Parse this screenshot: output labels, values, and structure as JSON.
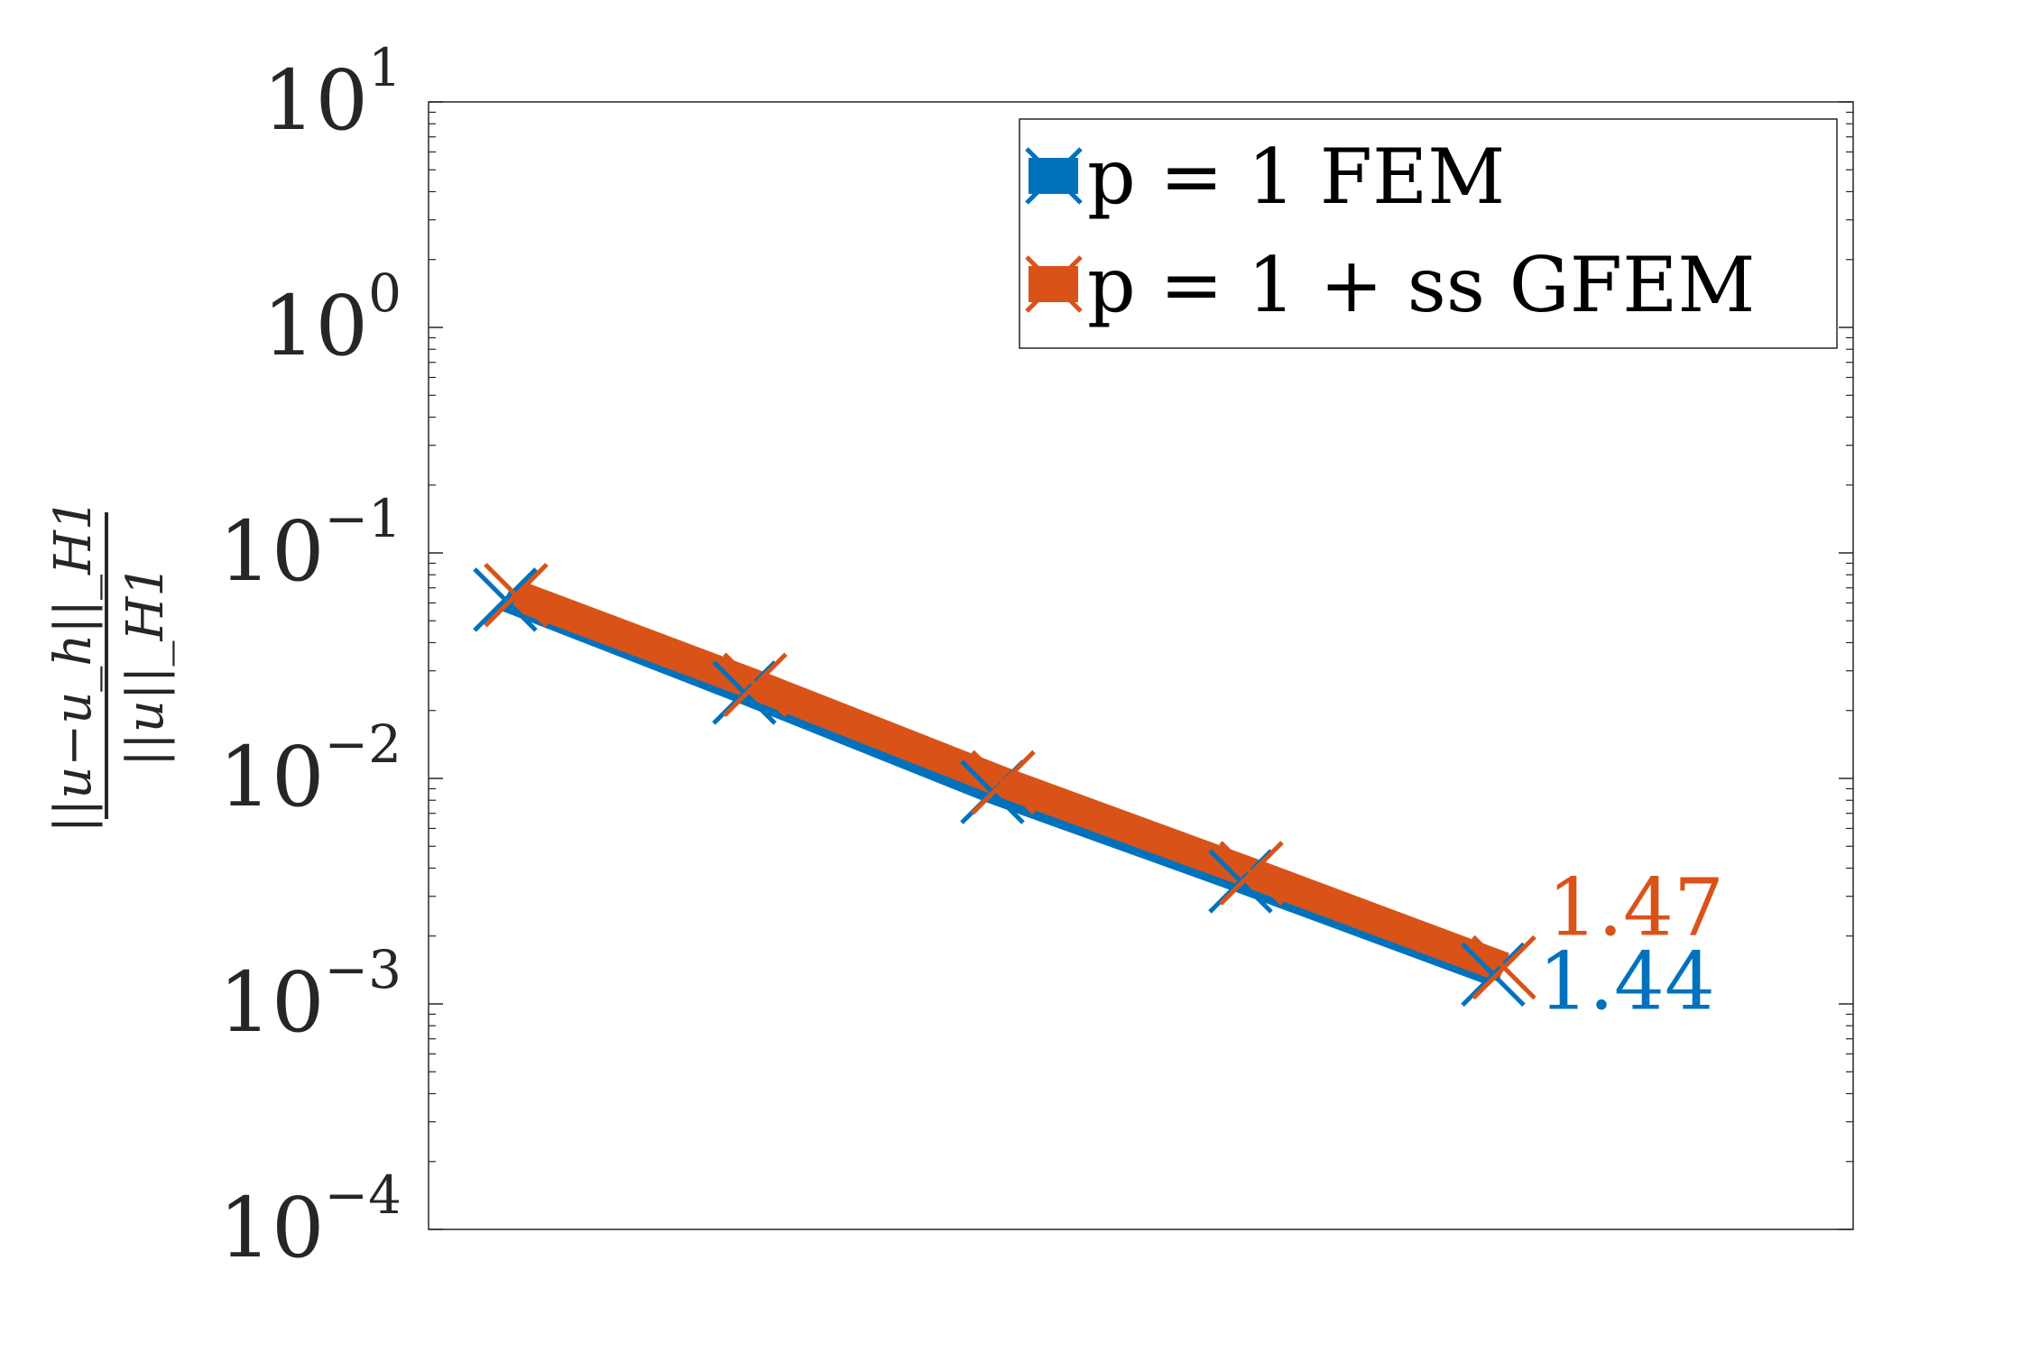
{
  "chart_data": {
    "type": "line",
    "title": "",
    "xlabel": "",
    "ylabel": {
      "numerator": "||u−u_h||_H1",
      "denominator": "||u||_H1"
    },
    "yscale": "log",
    "ylim": [
      0.0001,
      10
    ],
    "ytick_labels": [
      {
        "base": "10",
        "exp": "1"
      },
      {
        "base": "10",
        "exp": "0"
      },
      {
        "base": "10",
        "exp": "−1"
      },
      {
        "base": "10",
        "exp": "−2"
      },
      {
        "base": "10",
        "exp": "−3"
      },
      {
        "base": "10",
        "exp": "−4"
      }
    ],
    "ytick_values": [
      10,
      1,
      0.1,
      0.01,
      0.001,
      0.0001
    ],
    "x_ticks_visible": false,
    "grid": false,
    "legend_position": "top-right",
    "series": [
      {
        "name": "p = 1 FEM",
        "color": "#0072BD",
        "marker": "x",
        "x": [
          1,
          2,
          3,
          4,
          5
        ],
        "y": [
          0.062,
          0.024,
          0.0087,
          0.0035,
          0.00135
        ]
      },
      {
        "name": "p = 1 + ss GFEM",
        "color": "#D95319",
        "marker": "x",
        "x": [
          1,
          2,
          3,
          4,
          5
        ],
        "y": [
          0.065,
          0.026,
          0.0096,
          0.0038,
          0.00145
        ]
      }
    ],
    "annotations": [
      {
        "text": "1.47",
        "color": "#D95319",
        "series": 1
      },
      {
        "text": "1.44",
        "color": "#0072BD",
        "series": 0
      }
    ]
  }
}
